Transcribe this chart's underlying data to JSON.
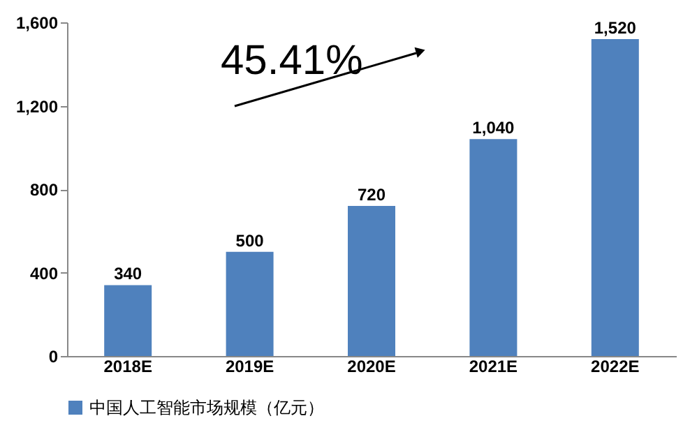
{
  "chart_data": {
    "type": "bar",
    "categories": [
      "2018E",
      "2019E",
      "2020E",
      "2021E",
      "2022E"
    ],
    "series": [
      {
        "name": "中国人工智能市场规模（亿元）",
        "color": "#4f81bd",
        "values": [
          340,
          500,
          720,
          1040,
          1520
        ],
        "value_labels": [
          "340",
          "500",
          "720",
          "1,040",
          "1,520"
        ]
      }
    ],
    "ylim": [
      0,
      1600
    ],
    "yticks": [
      0,
      400,
      800,
      {
        "value": 1200,
        "label": "1,200"
      },
      {
        "value": 1600,
        "label": "1,600"
      }
    ],
    "annotations": [
      "45.41%"
    ],
    "grid": false,
    "legend": "bottom"
  }
}
